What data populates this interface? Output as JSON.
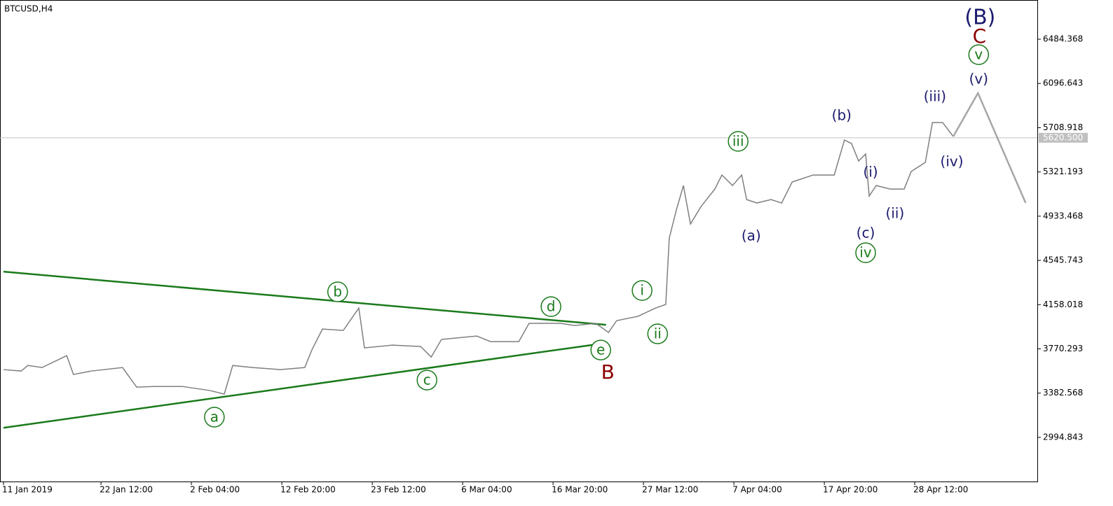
{
  "chart_data": {
    "type": "line",
    "title": "BTCUSD,H4",
    "x": [
      0,
      50,
      69,
      109,
      179,
      198,
      248,
      337,
      377,
      427,
      506,
      585,
      625,
      649,
      705,
      784,
      853,
      873,
      903,
      962,
      1006,
      1022,
      1101,
      1181,
      1211,
      1240,
      1340,
      1379,
      1459,
      1488,
      1578,
      1617,
      1677,
      1713,
      1736,
      1796,
      1846,
      1875,
      1885,
      1905,
      1925,
      1945,
      1975,
      2014,
      2034,
      2064,
      2090,
      2104,
      2133,
      2173,
      2203,
      2233,
      2292,
      2352,
      2381,
      2401,
      2421,
      2441,
      2451,
      2471,
      2510,
      2550,
      2570,
      2610,
      2630,
      2659,
      2689
    ],
    "values": [
      3589,
      3576,
      3625,
      3607,
      3711,
      3546,
      3576,
      3607,
      3435,
      3441,
      3441,
      3405,
      3374,
      3625,
      3607,
      3589,
      3607,
      3761,
      3944,
      3932,
      4128,
      3779,
      3803,
      3791,
      3699,
      3853,
      3883,
      3834,
      3834,
      3994,
      3994,
      3975,
      3994,
      3914,
      4018,
      4055,
      4128,
      4159,
      4742,
      4987,
      5202,
      4865,
      5018,
      5171,
      5294,
      5202,
      5294,
      5079,
      5049,
      5079,
      5049,
      5233,
      5294,
      5294,
      5601,
      5570,
      5417,
      5478,
      5110,
      5202,
      5171,
      5171,
      5325,
      5405,
      5754,
      5754,
      5632
    ],
    "color": "#7f7f7f",
    "xlim": [
      0,
      2927
    ],
    "ylim": [
      2608,
      6828
    ],
    "xticks": [
      {
        "value": 0,
        "label": "11 Jan 2019"
      },
      {
        "value": 276,
        "label": "22 Jan 12:00"
      },
      {
        "value": 532,
        "label": "2 Feb 04:00"
      },
      {
        "value": 788,
        "label": "12 Feb 20:00"
      },
      {
        "value": 1044,
        "label": "23 Feb 12:00"
      },
      {
        "value": 1300,
        "label": "6 Mar 04:00"
      },
      {
        "value": 1556,
        "label": "16 Mar 20:00"
      },
      {
        "value": 1812,
        "label": "27 Mar 12:00"
      },
      {
        "value": 2068,
        "label": "7 Apr 04:00"
      },
      {
        "value": 2324,
        "label": "17 Apr 20:00"
      },
      {
        "value": 2580,
        "label": "28 Apr 12:00"
      }
    ],
    "yticks": [
      2994.843,
      3382.568,
      3770.293,
      4158.018,
      4545.743,
      4933.468,
      5321.193,
      5708.918,
      6096.643,
      6484.368
    ],
    "current_price": {
      "value": 5620.5,
      "label": "5620.500"
    },
    "forecast": {
      "x": [
        2689,
        2759,
        2894
      ],
      "values": [
        5632,
        6012,
        5049
      ],
      "color": "#a6a6a6"
    },
    "trendlines": [
      {
        "x": [
          0,
          1706
        ],
        "values": [
          4447,
          3981
        ],
        "color": "#1a7a1a"
      },
      {
        "x": [
          0,
          1706
        ],
        "values": [
          3079,
          3822
        ],
        "color": "#1a7a1a"
      }
    ],
    "waves": [
      {
        "color": "#1a7a1a",
        "circled": true,
        "labels": [
          {
            "text": "a",
            "x": 597,
            "y": 3172
          },
          {
            "text": "b",
            "x": 946,
            "y": 4270
          },
          {
            "text": "c",
            "x": 1199,
            "y": 3497
          },
          {
            "text": "d",
            "x": 1550,
            "y": 4141
          },
          {
            "text": "e",
            "x": 1691,
            "y": 3760
          },
          {
            "text": "i",
            "x": 1808,
            "y": 4282
          },
          {
            "text": "ii",
            "x": 1852,
            "y": 3902
          },
          {
            "text": "iii",
            "x": 2080,
            "y": 5589
          },
          {
            "text": "iv",
            "x": 2441,
            "y": 4613
          },
          {
            "text": "v",
            "x": 2761,
            "y": 6349
          }
        ]
      },
      {
        "color": "#1a1a6e",
        "circled": false,
        "labels": [
          {
            "text": "(a)",
            "x": 2117,
            "y": 4760
          },
          {
            "text": "(b)",
            "x": 2373,
            "y": 5816
          },
          {
            "text": "(i)",
            "x": 2455,
            "y": 5319
          },
          {
            "text": "(c)",
            "x": 2441,
            "y": 4785
          },
          {
            "text": "(ii)",
            "x": 2524,
            "y": 4957
          },
          {
            "text": "(iii)",
            "x": 2637,
            "y": 5981
          },
          {
            "text": "(iv)",
            "x": 2685,
            "y": 5411
          },
          {
            "text": "(v)",
            "x": 2761,
            "y": 6135
          }
        ]
      },
      {
        "color": "#8b0000",
        "circled": false,
        "labels": [
          {
            "text": "B",
            "x": 1711,
            "y": 3564
          },
          {
            "text": "C",
            "x": 2763,
            "y": 6509
          }
        ]
      },
      {
        "color": "#1a1a6e",
        "circled": false,
        "labels": [
          {
            "text": "(B)",
            "x": 2765,
            "y": 6675
          }
        ]
      }
    ]
  }
}
